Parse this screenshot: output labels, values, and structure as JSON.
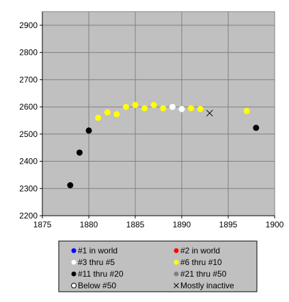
{
  "chart_data": {
    "type": "scatter",
    "title": "",
    "xlabel": "",
    "ylabel": "",
    "xlim": [
      1875,
      1900
    ],
    "ylim": [
      2200,
      2950
    ],
    "x_ticks": [
      1875,
      1880,
      1885,
      1890,
      1895,
      1900
    ],
    "y_ticks": [
      2200,
      2300,
      2400,
      2500,
      2600,
      2700,
      2800,
      2900
    ],
    "grid": true,
    "plot_background": "#c0c0c0",
    "legend_position": "bottom",
    "legend": [
      {
        "label": "#1 in world",
        "color": "#0000ff",
        "marker": "dot"
      },
      {
        "label": "#2 in world",
        "color": "#ff0000",
        "marker": "dot"
      },
      {
        "label": "#3 thru #5",
        "color": "#ffffff",
        "marker": "dot"
      },
      {
        "label": "#6 thru #10",
        "color": "#ffff00",
        "marker": "dot"
      },
      {
        "label": "#11 thru #20",
        "color": "#000000",
        "marker": "dot"
      },
      {
        "label": "#21 thru #50",
        "color": "#808080",
        "marker": "dot"
      },
      {
        "label": "Below #50",
        "color": "#ffffff",
        "marker": "ring"
      },
      {
        "label": "Mostly inactive",
        "color": "#000000",
        "marker": "x"
      }
    ],
    "points": [
      {
        "x": 1878,
        "y": 2312,
        "category": "#11 thru #20"
      },
      {
        "x": 1879,
        "y": 2432,
        "category": "#11 thru #20"
      },
      {
        "x": 1880,
        "y": 2513,
        "category": "#11 thru #20"
      },
      {
        "x": 1881,
        "y": 2560,
        "category": "#6 thru #10"
      },
      {
        "x": 1882,
        "y": 2580,
        "category": "#6 thru #10"
      },
      {
        "x": 1883,
        "y": 2573,
        "category": "#6 thru #10"
      },
      {
        "x": 1884,
        "y": 2600,
        "category": "#6 thru #10"
      },
      {
        "x": 1885,
        "y": 2607,
        "category": "#6 thru #10"
      },
      {
        "x": 1886,
        "y": 2595,
        "category": "#6 thru #10"
      },
      {
        "x": 1887,
        "y": 2607,
        "category": "#6 thru #10"
      },
      {
        "x": 1888,
        "y": 2595,
        "category": "#6 thru #10"
      },
      {
        "x": 1889,
        "y": 2600,
        "category": "#3 thru #5"
      },
      {
        "x": 1890,
        "y": 2592,
        "category": "#3 thru #5"
      },
      {
        "x": 1891,
        "y": 2595,
        "category": "#6 thru #10"
      },
      {
        "x": 1892,
        "y": 2592,
        "category": "#6 thru #10"
      },
      {
        "x": 1893,
        "y": 2577,
        "category": "Mostly inactive"
      },
      {
        "x": 1897,
        "y": 2585,
        "category": "#6 thru #10"
      },
      {
        "x": 1898,
        "y": 2523,
        "category": "#11 thru #20"
      }
    ]
  }
}
